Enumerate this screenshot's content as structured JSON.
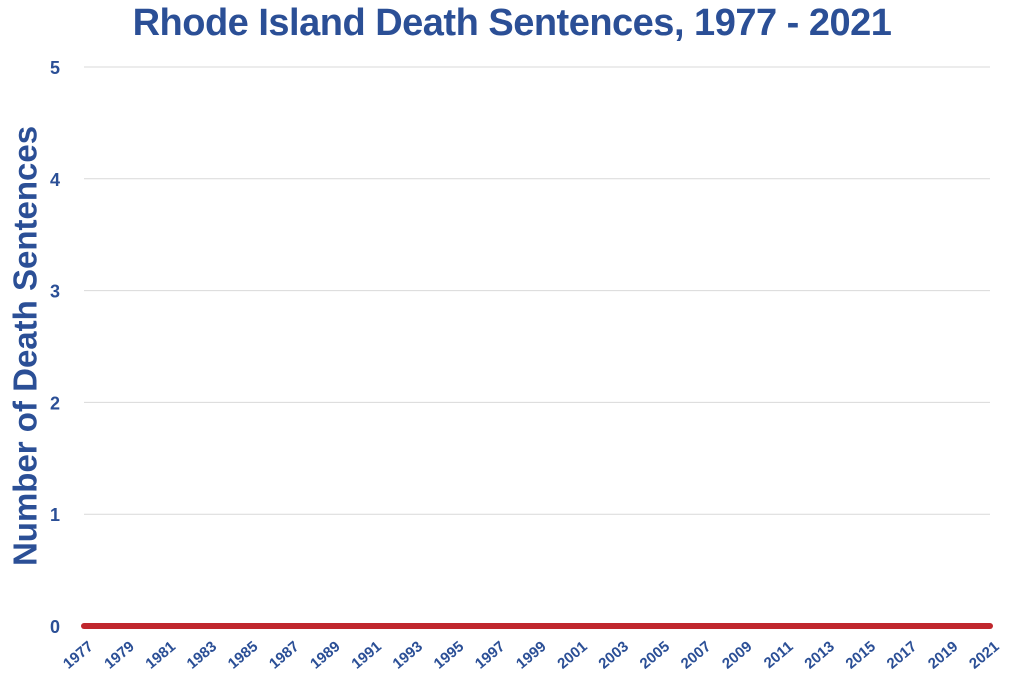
{
  "colors": {
    "text": "#2b4f96",
    "line": "#c0272d",
    "grid": "#d9d9d9",
    "shadow": "#7f7f7f"
  },
  "chart_data": {
    "type": "line",
    "title": "Rhode Island Death Sentences, 1977 - 2021",
    "xlabel": "",
    "ylabel": "Number of Death Sentences",
    "ylim": [
      0,
      5
    ],
    "yticks": [
      "0",
      "1",
      "2",
      "3",
      "4",
      "5"
    ],
    "grid": true,
    "legend": "none",
    "x": [
      1977,
      1978,
      1979,
      1980,
      1981,
      1982,
      1983,
      1984,
      1985,
      1986,
      1987,
      1988,
      1989,
      1990,
      1991,
      1992,
      1993,
      1994,
      1995,
      1996,
      1997,
      1998,
      1999,
      2000,
      2001,
      2002,
      2003,
      2004,
      2005,
      2006,
      2007,
      2008,
      2009,
      2010,
      2011,
      2012,
      2013,
      2014,
      2015,
      2016,
      2017,
      2018,
      2019,
      2020,
      2021
    ],
    "xtick_labels": [
      "1977",
      "1979",
      "1981",
      "1983",
      "1985",
      "1987",
      "1989",
      "1991",
      "1993",
      "1995",
      "1997",
      "1999",
      "2001",
      "2003",
      "2005",
      "2007",
      "2009",
      "2011",
      "2013",
      "2015",
      "2017",
      "2019",
      "2021"
    ],
    "series": [
      {
        "values": [
          0,
          0,
          0,
          0,
          0,
          0,
          0,
          0,
          0,
          0,
          0,
          0,
          0,
          0,
          0,
          0,
          0,
          0,
          0,
          0,
          0,
          0,
          0,
          0,
          0,
          0,
          0,
          0,
          0,
          0,
          0,
          0,
          0,
          0,
          0,
          0,
          0,
          0,
          0,
          0,
          0,
          0,
          0,
          0,
          0
        ]
      }
    ]
  }
}
